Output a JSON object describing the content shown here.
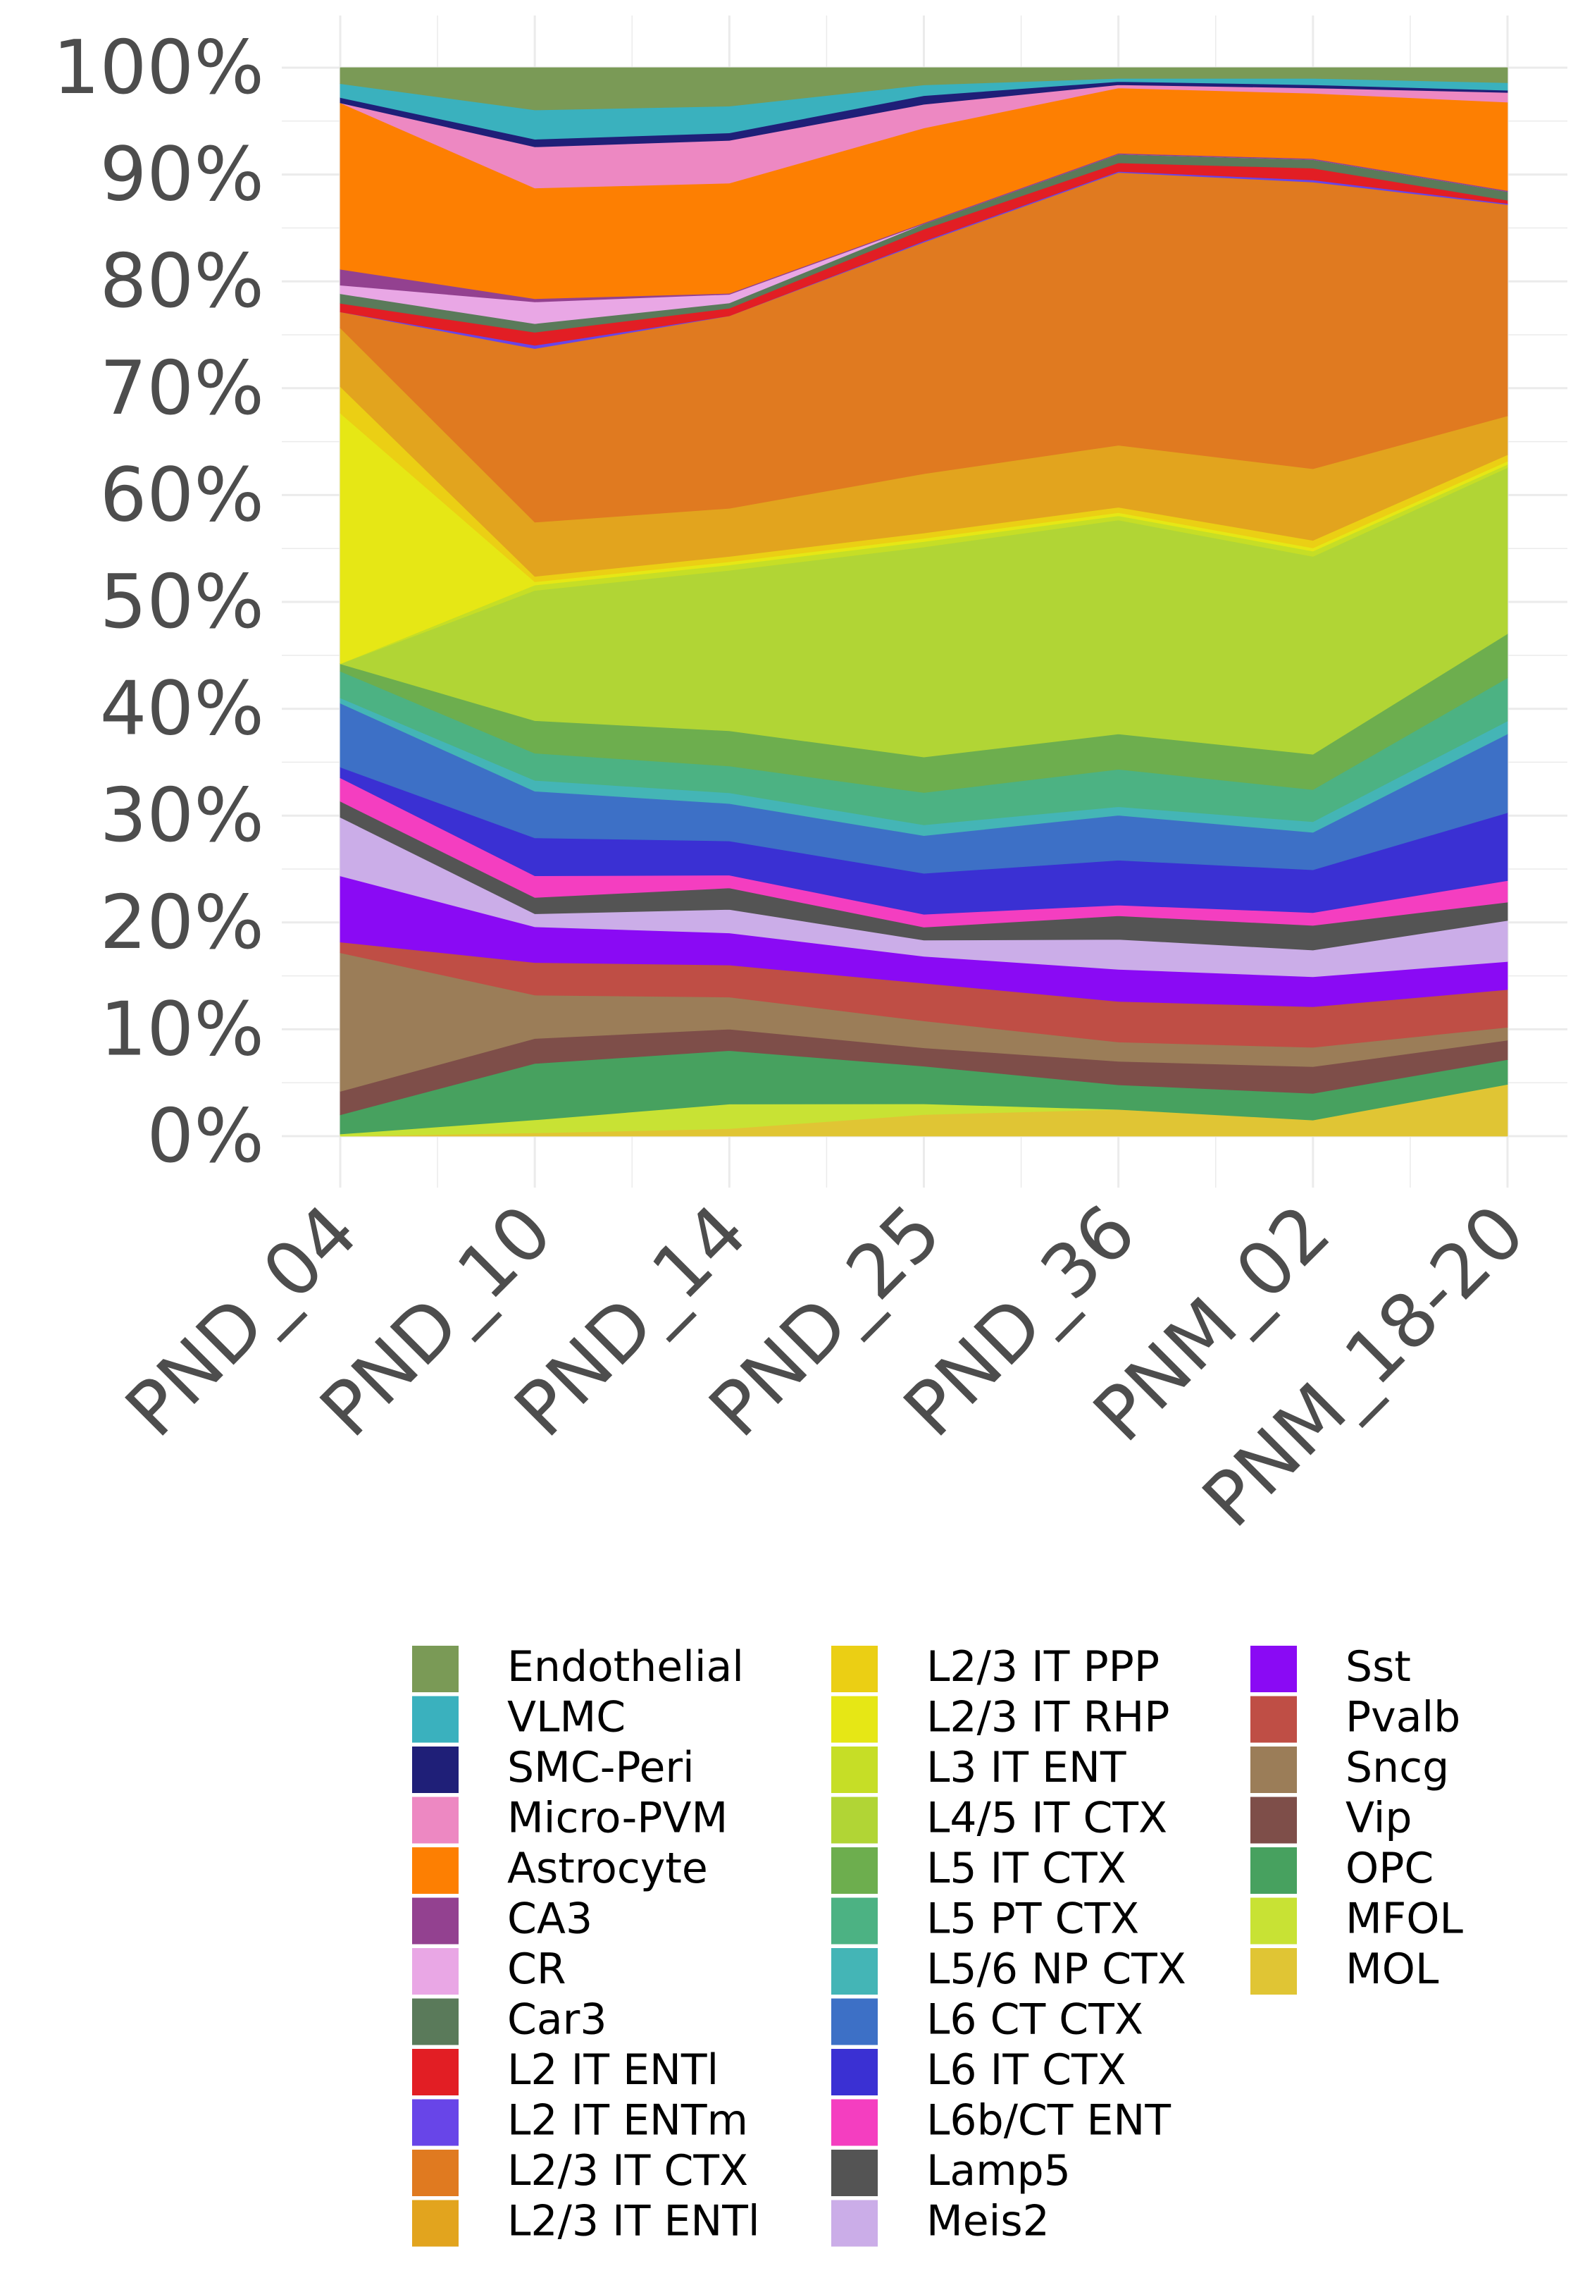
{
  "chart_data": {
    "type": "area",
    "stacked": "percent",
    "title": "",
    "xlabel": "",
    "ylabel": "",
    "ylim": [
      0,
      100
    ],
    "y_ticks": [
      "0%",
      "10%",
      "20%",
      "30%",
      "40%",
      "50%",
      "60%",
      "70%",
      "80%",
      "90%",
      "100%"
    ],
    "categories": [
      "PND_04",
      "PND_10",
      "PND_14",
      "PND_25",
      "PND_36",
      "PNM_02",
      "PNM_18-20"
    ],
    "grid": true,
    "legend_position": "bottom",
    "stack_order": "MOL at bottom, Endothelial at top",
    "series": [
      {
        "name": "MOL",
        "color": "#E0C534",
        "values": [
          0,
          0.3,
          0.7,
          2.0,
          2.5,
          1.5,
          4.8
        ]
      },
      {
        "name": "MFOL",
        "color": "#C8E234",
        "values": [
          0.2,
          1.2,
          2.3,
          1.0,
          0,
          0,
          0
        ]
      },
      {
        "name": "OPC",
        "color": "#47A15F",
        "values": [
          1.8,
          5.2,
          5.0,
          3.5,
          2.3,
          2.5,
          2.3
        ]
      },
      {
        "name": "Vip",
        "color": "#7E4E49",
        "values": [
          2.2,
          2.3,
          2.0,
          1.7,
          2.2,
          2.5,
          1.8
        ]
      },
      {
        "name": "Sncg",
        "color": "#9B7D58",
        "values": [
          13.0,
          4.0,
          3.0,
          2.5,
          1.8,
          1.8,
          1.2
        ]
      },
      {
        "name": "Pvalb",
        "color": "#BF4E45",
        "values": [
          1.0,
          3.0,
          3.0,
          3.5,
          3.8,
          3.8,
          3.5
        ]
      },
      {
        "name": "Sst",
        "color": "#8A0AF4",
        "values": [
          6.2,
          3.3,
          3.0,
          2.5,
          3.0,
          2.8,
          2.6
        ]
      },
      {
        "name": "Meis2",
        "color": "#CBADE8",
        "values": [
          5.5,
          1.2,
          2.2,
          1.5,
          2.8,
          2.5,
          3.8
        ]
      },
      {
        "name": "Lamp5",
        "color": "#545454",
        "values": [
          1.5,
          1.5,
          2.0,
          1.2,
          2.2,
          2.3,
          1.7
        ]
      },
      {
        "name": "L6b/CT ENT",
        "color": "#F43EC0",
        "values": [
          2.2,
          2.0,
          1.2,
          1.2,
          1.0,
          1.2,
          2.0
        ]
      },
      {
        "name": "L6 IT CTX",
        "color": "#3A30D3",
        "values": [
          1.0,
          3.5,
          3.2,
          3.8,
          4.2,
          4.0,
          6.3
        ]
      },
      {
        "name": "L6 CT CTX",
        "color": "#3D70C6",
        "values": [
          6.0,
          4.3,
          3.5,
          3.5,
          4.2,
          3.5,
          7.3
        ]
      },
      {
        "name": "L5/6 NP CTX",
        "color": "#44B5B6",
        "values": [
          0.5,
          1.0,
          1.0,
          1.0,
          0.8,
          1.0,
          1.2
        ]
      },
      {
        "name": "L5 PT CTX",
        "color": "#4CB283",
        "values": [
          2.5,
          2.5,
          2.5,
          3.0,
          3.5,
          3.0,
          4.0
        ]
      },
      {
        "name": "L5 IT CTX",
        "color": "#6DAE4E",
        "values": [
          0.7,
          3.0,
          3.3,
          3.3,
          3.3,
          3.3,
          4.1
        ]
      },
      {
        "name": "L4/5 IT CTX",
        "color": "#B1D535",
        "values": [
          0,
          12.0,
          15.0,
          19.5,
          20.0,
          18.5,
          15.4
        ]
      },
      {
        "name": "L3 IT ENT",
        "color": "#C6DE26",
        "values": [
          0,
          0.5,
          0.5,
          0.5,
          0.4,
          0.5,
          0.3
        ]
      },
      {
        "name": "L2/3 IT RHP",
        "color": "#E6E715",
        "values": [
          23.5,
          0.3,
          0.3,
          0.3,
          0.3,
          0.3,
          0.3
        ]
      },
      {
        "name": "L2/3 IT PPP",
        "color": "#EBCF14",
        "values": [
          2.5,
          0.5,
          0.5,
          0.5,
          0.5,
          0.7,
          0.6
        ]
      },
      {
        "name": "L2/3 IT ENTl",
        "color": "#E2A41E",
        "values": [
          5.5,
          5.0,
          4.5,
          5.5,
          5.8,
          6.7,
          3.6
        ]
      },
      {
        "name": "L2/3 IT CTX",
        "color": "#E07A20",
        "values": [
          1.5,
          16.0,
          18.0,
          21.5,
          25.5,
          26.8,
          19.6
        ]
      },
      {
        "name": "L2 IT ENTm",
        "color": "#6845E8",
        "values": [
          0,
          0.3,
          0,
          0.1,
          0.1,
          0.2,
          0.1
        ]
      },
      {
        "name": "L2 IT ENTl",
        "color": "#E21E24",
        "values": [
          0.8,
          1.2,
          0.7,
          1.1,
          0.8,
          1.1,
          0.3
        ]
      },
      {
        "name": "Car3",
        "color": "#5A7A5A",
        "values": [
          0.9,
          0.8,
          0.5,
          0.5,
          0.8,
          0.8,
          0.8
        ]
      },
      {
        "name": "CR",
        "color": "#E9A7E5",
        "values": [
          0.8,
          2.0,
          0.8,
          0,
          0,
          0,
          0
        ]
      },
      {
        "name": "CA3",
        "color": "#934190",
        "values": [
          1.5,
          0.3,
          0.1,
          0.1,
          0.1,
          0.1,
          0.1
        ]
      },
      {
        "name": "Astrocyte",
        "color": "#FD7F02",
        "values": [
          15.6,
          10.2,
          10.3,
          8.8,
          6.1,
          6.1,
          8.2
        ]
      },
      {
        "name": "Micro-PVM",
        "color": "#ED88C2",
        "values": [
          0,
          3.8,
          4.0,
          2.2,
          0.3,
          0.5,
          0.9
        ]
      },
      {
        "name": "SMC-Peri",
        "color": "#1F1F78",
        "values": [
          0.5,
          0.7,
          0.7,
          0.8,
          0.3,
          0.3,
          0.2
        ]
      },
      {
        "name": "VLMC",
        "color": "#3AB1BE",
        "values": [
          1.3,
          2.7,
          2.5,
          1.0,
          0.3,
          0.6,
          0.7
        ]
      },
      {
        "name": "Endothelial",
        "color": "#7A9A56",
        "values": [
          1.5,
          3.9,
          3.6,
          1.6,
          1.0,
          1.0,
          1.4
        ]
      }
    ],
    "legend_columns": [
      [
        "Endothelial",
        "VLMC",
        "SMC-Peri",
        "Micro-PVM",
        "Astrocyte",
        "CA3",
        "CR",
        "Car3",
        "L2 IT ENTl",
        "L2 IT ENTm",
        "L2/3 IT CTX",
        "L2/3 IT ENTl"
      ],
      [
        "L2/3 IT PPP",
        "L2/3 IT RHP",
        "L3 IT ENT",
        "L4/5 IT CTX",
        "L5 IT CTX",
        "L5 PT CTX",
        "L5/6 NP CTX",
        "L6 CT CTX",
        "L6 IT CTX",
        "L6b/CT ENT",
        "Lamp5",
        "Meis2"
      ],
      [
        "Sst",
        "Pvalb",
        "Sncg",
        "Vip",
        "OPC",
        "MFOL",
        "MOL"
      ]
    ]
  }
}
